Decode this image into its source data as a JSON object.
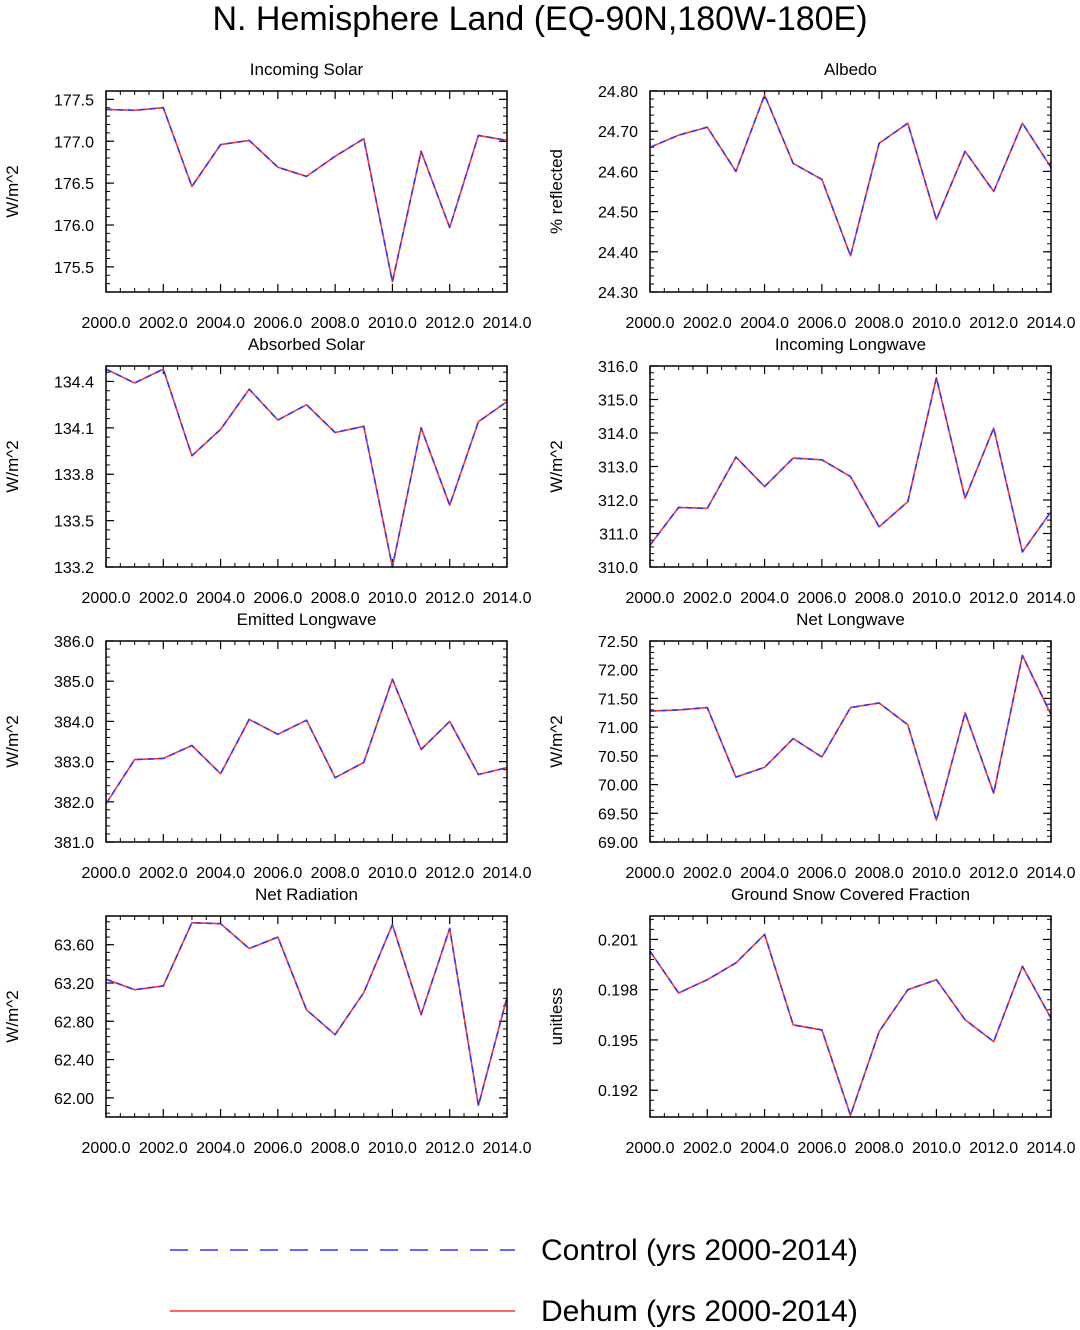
{
  "figure_title": "N. Hemisphere Land (EQ-90N,180W-180E)",
  "legend": [
    {
      "label": "Control (yrs 2000-2014)",
      "color": "#3333ff",
      "style": "dashed"
    },
    {
      "label": "Dehum (yrs 2000-2014)",
      "color": "#ff3333",
      "style": "solid"
    }
  ],
  "chart_data": [
    {
      "type": "line",
      "title": "Incoming Solar",
      "ylabel": "W/m^2",
      "xlim": [
        2000,
        2014
      ],
      "ylim": [
        175.2,
        177.6
      ],
      "x": [
        2000,
        2001,
        2002,
        2003,
        2004,
        2005,
        2006,
        2007,
        2008,
        2009,
        2010,
        2011,
        2012,
        2013,
        2014
      ],
      "xticks": [
        2000,
        2002,
        2004,
        2006,
        2008,
        2010,
        2012,
        2014
      ],
      "xtick_labels": [
        "2000.0",
        "2002.0",
        "2004.0",
        "2006.0",
        "2008.0",
        "2010.0",
        "2012.0",
        "2014.0"
      ],
      "yticks": [
        175.5,
        176.0,
        176.5,
        177.0,
        177.5
      ],
      "ytick_labels": [
        "175.5",
        "176.0",
        "176.5",
        "177.0",
        "177.5"
      ],
      "series": [
        {
          "name": "Control (yrs 2000-2014)",
          "values": [
            177.38,
            177.37,
            177.4,
            176.46,
            176.96,
            177.01,
            176.69,
            176.58,
            176.82,
            177.03,
            175.32,
            176.88,
            175.97,
            177.07,
            177.01
          ]
        },
        {
          "name": "Dehum (yrs 2000-2014)",
          "values": [
            177.38,
            177.37,
            177.4,
            176.46,
            176.96,
            177.01,
            176.69,
            176.58,
            176.82,
            177.03,
            175.32,
            176.88,
            175.97,
            177.07,
            177.01
          ]
        }
      ]
    },
    {
      "type": "line",
      "title": "Albedo",
      "ylabel": "% reflected",
      "xlim": [
        2000,
        2014
      ],
      "ylim": [
        24.3,
        24.8
      ],
      "x": [
        2000,
        2001,
        2002,
        2003,
        2004,
        2005,
        2006,
        2007,
        2008,
        2009,
        2010,
        2011,
        2012,
        2013,
        2014
      ],
      "xticks": [
        2000,
        2002,
        2004,
        2006,
        2008,
        2010,
        2012,
        2014
      ],
      "xtick_labels": [
        "2000.0",
        "2002.0",
        "2004.0",
        "2006.0",
        "2008.0",
        "2010.0",
        "2012.0",
        "2014.0"
      ],
      "yticks": [
        24.3,
        24.4,
        24.5,
        24.6,
        24.7,
        24.8
      ],
      "ytick_labels": [
        "24.30",
        "24.40",
        "24.50",
        "24.60",
        "24.70",
        "24.80"
      ],
      "series": [
        {
          "name": "Control (yrs 2000-2014)",
          "values": [
            24.66,
            24.69,
            24.71,
            24.6,
            24.79,
            24.62,
            24.58,
            24.39,
            24.67,
            24.72,
            24.48,
            24.65,
            24.55,
            24.72,
            24.61
          ]
        },
        {
          "name": "Dehum (yrs 2000-2014)",
          "values": [
            24.66,
            24.69,
            24.71,
            24.6,
            24.79,
            24.62,
            24.58,
            24.39,
            24.67,
            24.72,
            24.48,
            24.65,
            24.55,
            24.72,
            24.61
          ]
        }
      ]
    },
    {
      "type": "line",
      "title": "Absorbed Solar",
      "ylabel": "W/m^2",
      "xlim": [
        2000,
        2014
      ],
      "ylim": [
        133.2,
        134.5
      ],
      "x": [
        2000,
        2001,
        2002,
        2003,
        2004,
        2005,
        2006,
        2007,
        2008,
        2009,
        2010,
        2011,
        2012,
        2013,
        2014
      ],
      "xticks": [
        2000,
        2002,
        2004,
        2006,
        2008,
        2010,
        2012,
        2014
      ],
      "xtick_labels": [
        "2000.0",
        "2002.0",
        "2004.0",
        "2006.0",
        "2008.0",
        "2010.0",
        "2012.0",
        "2014.0"
      ],
      "yticks": [
        133.2,
        133.5,
        133.8,
        134.1,
        134.4
      ],
      "ytick_labels": [
        "133.2",
        "133.5",
        "133.8",
        "134.1",
        "134.4"
      ],
      "series": [
        {
          "name": "Control (yrs 2000-2014)",
          "values": [
            134.48,
            134.39,
            134.48,
            133.92,
            134.09,
            134.35,
            134.15,
            134.25,
            134.07,
            134.11,
            133.2,
            134.1,
            133.6,
            134.14,
            134.27
          ]
        },
        {
          "name": "Dehum (yrs 2000-2014)",
          "values": [
            134.48,
            134.39,
            134.48,
            133.92,
            134.09,
            134.35,
            134.15,
            134.25,
            134.07,
            134.11,
            133.2,
            134.1,
            133.6,
            134.14,
            134.27
          ]
        }
      ]
    },
    {
      "type": "line",
      "title": "Incoming Longwave",
      "ylabel": "W/m^2",
      "xlim": [
        2000,
        2014
      ],
      "ylim": [
        310.0,
        316.0
      ],
      "x": [
        2000,
        2001,
        2002,
        2003,
        2004,
        2005,
        2006,
        2007,
        2008,
        2009,
        2010,
        2011,
        2012,
        2013,
        2014
      ],
      "xticks": [
        2000,
        2002,
        2004,
        2006,
        2008,
        2010,
        2012,
        2014
      ],
      "xtick_labels": [
        "2000.0",
        "2002.0",
        "2004.0",
        "2006.0",
        "2008.0",
        "2010.0",
        "2012.0",
        "2014.0"
      ],
      "yticks": [
        310,
        311,
        312,
        313,
        314,
        315,
        316
      ],
      "ytick_labels": [
        "310.0",
        "311.0",
        "312.0",
        "313.0",
        "314.0",
        "315.0",
        "316.0"
      ],
      "series": [
        {
          "name": "Control (yrs 2000-2014)",
          "values": [
            310.65,
            311.78,
            311.75,
            313.28,
            312.4,
            313.25,
            313.2,
            312.7,
            311.2,
            311.95,
            315.65,
            312.05,
            314.15,
            310.45,
            311.65
          ]
        },
        {
          "name": "Dehum (yrs 2000-2014)",
          "values": [
            310.65,
            311.78,
            311.75,
            313.28,
            312.4,
            313.25,
            313.2,
            312.7,
            311.2,
            311.95,
            315.65,
            312.05,
            314.15,
            310.45,
            311.65
          ]
        }
      ]
    },
    {
      "type": "line",
      "title": "Emitted Longwave",
      "ylabel": "W/m^2",
      "xlim": [
        2000,
        2014
      ],
      "ylim": [
        381.0,
        386.0
      ],
      "x": [
        2000,
        2001,
        2002,
        2003,
        2004,
        2005,
        2006,
        2007,
        2008,
        2009,
        2010,
        2011,
        2012,
        2013,
        2014
      ],
      "xticks": [
        2000,
        2002,
        2004,
        2006,
        2008,
        2010,
        2012,
        2014
      ],
      "xtick_labels": [
        "2000.0",
        "2002.0",
        "2004.0",
        "2006.0",
        "2008.0",
        "2010.0",
        "2012.0",
        "2014.0"
      ],
      "yticks": [
        381,
        382,
        383,
        384,
        385,
        386
      ],
      "ytick_labels": [
        "381.0",
        "382.0",
        "383.0",
        "384.0",
        "385.0",
        "386.0"
      ],
      "series": [
        {
          "name": "Control (yrs 2000-2014)",
          "values": [
            381.95,
            383.05,
            383.08,
            383.4,
            382.7,
            384.05,
            383.68,
            384.03,
            382.6,
            382.98,
            385.05,
            383.3,
            384.0,
            382.68,
            382.85
          ]
        },
        {
          "name": "Dehum (yrs 2000-2014)",
          "values": [
            381.95,
            383.05,
            383.08,
            383.4,
            382.7,
            384.05,
            383.68,
            384.03,
            382.6,
            382.98,
            385.05,
            383.3,
            384.0,
            382.68,
            382.85
          ]
        }
      ]
    },
    {
      "type": "line",
      "title": "Net Longwave",
      "ylabel": "W/m^2",
      "xlim": [
        2000,
        2014
      ],
      "ylim": [
        69.0,
        72.5
      ],
      "x": [
        2000,
        2001,
        2002,
        2003,
        2004,
        2005,
        2006,
        2007,
        2008,
        2009,
        2010,
        2011,
        2012,
        2013,
        2014
      ],
      "xticks": [
        2000,
        2002,
        2004,
        2006,
        2008,
        2010,
        2012,
        2014
      ],
      "xtick_labels": [
        "2000.0",
        "2002.0",
        "2004.0",
        "2006.0",
        "2008.0",
        "2010.0",
        "2012.0",
        "2014.0"
      ],
      "yticks": [
        69.0,
        69.5,
        70.0,
        70.5,
        71.0,
        71.5,
        72.0,
        72.5
      ],
      "ytick_labels": [
        "69.00",
        "69.50",
        "70.00",
        "70.50",
        "71.00",
        "71.50",
        "72.00",
        "72.50"
      ],
      "series": [
        {
          "name": "Control (yrs 2000-2014)",
          "values": [
            71.28,
            71.3,
            71.34,
            70.13,
            70.3,
            70.8,
            70.48,
            71.34,
            71.42,
            71.04,
            69.38,
            71.25,
            69.85,
            72.25,
            71.22
          ]
        },
        {
          "name": "Dehum (yrs 2000-2014)",
          "values": [
            71.28,
            71.3,
            71.34,
            70.13,
            70.3,
            70.8,
            70.48,
            71.34,
            71.42,
            71.04,
            69.38,
            71.25,
            69.85,
            72.25,
            71.22
          ]
        }
      ]
    },
    {
      "type": "line",
      "title": "Net Radiation",
      "ylabel": "W/m^2",
      "xlim": [
        2000,
        2014
      ],
      "ylim": [
        61.8,
        63.9
      ],
      "x": [
        2000,
        2001,
        2002,
        2003,
        2004,
        2005,
        2006,
        2007,
        2008,
        2009,
        2010,
        2011,
        2012,
        2013,
        2014
      ],
      "xticks": [
        2000,
        2002,
        2004,
        2006,
        2008,
        2010,
        2012,
        2014
      ],
      "xtick_labels": [
        "2000.0",
        "2002.0",
        "2004.0",
        "2006.0",
        "2008.0",
        "2010.0",
        "2012.0",
        "2014.0"
      ],
      "yticks": [
        62.0,
        62.4,
        62.8,
        63.2,
        63.6
      ],
      "ytick_labels": [
        "62.00",
        "62.40",
        "62.80",
        "63.20",
        "63.60"
      ],
      "series": [
        {
          "name": "Control (yrs 2000-2014)",
          "values": [
            63.24,
            63.13,
            63.17,
            63.83,
            63.82,
            63.56,
            63.68,
            62.92,
            62.66,
            63.1,
            63.81,
            62.87,
            63.77,
            61.92,
            63.05
          ]
        },
        {
          "name": "Dehum (yrs 2000-2014)",
          "values": [
            63.24,
            63.13,
            63.17,
            63.83,
            63.82,
            63.56,
            63.68,
            62.92,
            62.66,
            63.1,
            63.81,
            62.87,
            63.77,
            61.92,
            63.05
          ]
        }
      ]
    },
    {
      "type": "line",
      "title": "Ground Snow Covered Fraction",
      "ylabel": "unitless",
      "xlim": [
        2000,
        2014
      ],
      "ylim": [
        0.1904,
        0.2024
      ],
      "x": [
        2000,
        2001,
        2002,
        2003,
        2004,
        2005,
        2006,
        2007,
        2008,
        2009,
        2010,
        2011,
        2012,
        2013,
        2014
      ],
      "xticks": [
        2000,
        2002,
        2004,
        2006,
        2008,
        2010,
        2012,
        2014
      ],
      "xtick_labels": [
        "2000.0",
        "2002.0",
        "2004.0",
        "2006.0",
        "2008.0",
        "2010.0",
        "2012.0",
        "2014.0"
      ],
      "yticks": [
        0.192,
        0.195,
        0.198,
        0.201
      ],
      "ytick_labels": [
        "0.192",
        "0.195",
        "0.198",
        "0.201"
      ],
      "series": [
        {
          "name": "Control (yrs 2000-2014)",
          "values": [
            0.2003,
            0.1978,
            0.1986,
            0.1996,
            0.2013,
            0.1959,
            0.1956,
            0.1905,
            0.1955,
            0.198,
            0.1986,
            0.1962,
            0.1949,
            0.1994,
            0.1963
          ]
        },
        {
          "name": "Dehum (yrs 2000-2014)",
          "values": [
            0.2003,
            0.1978,
            0.1986,
            0.1996,
            0.2013,
            0.1959,
            0.1956,
            0.1905,
            0.1955,
            0.198,
            0.1986,
            0.1962,
            0.1949,
            0.1994,
            0.1963
          ]
        }
      ]
    }
  ]
}
